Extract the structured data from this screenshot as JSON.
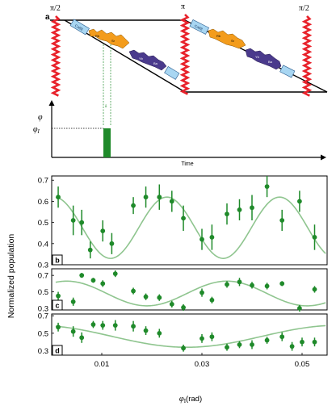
{
  "top": {
    "panel_label": "a",
    "pulse_labels": [
      "π/2",
      "π",
      "π/2"
    ],
    "phase_label": "φ",
    "phase_value_label": "φ",
    "phase_value_sub": "I",
    "delta_label": "δ",
    "time_label": "Time",
    "box_labels": [
      "Ca88",
      "Ca88"
    ],
    "molecule_labels": [
      "Rb",
      "Sr",
      "Yb",
      "Ba",
      "Rb",
      "Sr",
      "Yb",
      "Ba"
    ],
    "colors": {
      "pulse": "#e8222b",
      "orange": "#f39c1c",
      "purple": "#4a3a8c",
      "light_blue": "#a8d6f2",
      "green": "#1f8a2a"
    }
  },
  "shared_ylabel": "Normalized population",
  "shared_xlabel": "φ",
  "shared_xlabel_sub": "I",
  "shared_xlabel_unit": "(rad)",
  "chart_data": [
    {
      "type": "scatter",
      "panel": "b",
      "xlim": [
        0,
        0.055
      ],
      "ylim": [
        0.3,
        0.72
      ],
      "yticks": [
        "0.3",
        "0.4",
        "0.5",
        "0.6",
        "0.7"
      ],
      "ytick_values": [
        0.3,
        0.4,
        0.5,
        0.6,
        0.7
      ],
      "points": [
        {
          "x": 0.0013,
          "y": 0.62,
          "err": 0.05
        },
        {
          "x": 0.0043,
          "y": 0.51,
          "err": 0.07
        },
        {
          "x": 0.006,
          "y": 0.5,
          "err": 0.06
        },
        {
          "x": 0.0077,
          "y": 0.37,
          "err": 0.04
        },
        {
          "x": 0.0102,
          "y": 0.46,
          "err": 0.05
        },
        {
          "x": 0.012,
          "y": 0.4,
          "err": 0.05
        },
        {
          "x": 0.0163,
          "y": 0.58,
          "err": 0.04
        },
        {
          "x": 0.0188,
          "y": 0.62,
          "err": 0.05
        },
        {
          "x": 0.0215,
          "y": 0.62,
          "err": 0.06
        },
        {
          "x": 0.024,
          "y": 0.6,
          "err": 0.05
        },
        {
          "x": 0.0263,
          "y": 0.52,
          "err": 0.06
        },
        {
          "x": 0.03,
          "y": 0.42,
          "err": 0.05
        },
        {
          "x": 0.032,
          "y": 0.43,
          "err": 0.06
        },
        {
          "x": 0.035,
          "y": 0.54,
          "err": 0.05
        },
        {
          "x": 0.0375,
          "y": 0.56,
          "err": 0.05
        },
        {
          "x": 0.04,
          "y": 0.57,
          "err": 0.06
        },
        {
          "x": 0.043,
          "y": 0.67,
          "err": 0.05
        },
        {
          "x": 0.046,
          "y": 0.51,
          "err": 0.05
        },
        {
          "x": 0.0495,
          "y": 0.6,
          "err": 0.05
        },
        {
          "x": 0.0525,
          "y": 0.43,
          "err": 0.06
        }
      ],
      "fit": {
        "offset": 0.475,
        "amp": 0.145,
        "period": 0.0225,
        "x0": 0.0005
      }
    },
    {
      "type": "scatter",
      "panel": "c",
      "xlim": [
        0,
        0.055
      ],
      "ylim": [
        0.28,
        0.78
      ],
      "yticks": [
        "0.3",
        "0.5",
        "0.7"
      ],
      "ytick_values": [
        0.3,
        0.5,
        0.7
      ],
      "points": [
        {
          "x": 0.0013,
          "y": 0.45,
          "err": 0.05
        },
        {
          "x": 0.0043,
          "y": 0.38,
          "err": 0.05
        },
        {
          "x": 0.006,
          "y": 0.7,
          "err": 0.03
        },
        {
          "x": 0.0083,
          "y": 0.64,
          "err": 0.03
        },
        {
          "x": 0.0102,
          "y": 0.6,
          "err": 0.04
        },
        {
          "x": 0.0127,
          "y": 0.72,
          "err": 0.04
        },
        {
          "x": 0.0163,
          "y": 0.51,
          "err": 0.04
        },
        {
          "x": 0.0188,
          "y": 0.44,
          "err": 0.04
        },
        {
          "x": 0.0215,
          "y": 0.43,
          "err": 0.04
        },
        {
          "x": 0.024,
          "y": 0.35,
          "err": 0.04
        },
        {
          "x": 0.0263,
          "y": 0.31,
          "err": 0.04
        },
        {
          "x": 0.03,
          "y": 0.49,
          "err": 0.05
        },
        {
          "x": 0.032,
          "y": 0.4,
          "err": 0.04
        },
        {
          "x": 0.035,
          "y": 0.59,
          "err": 0.04
        },
        {
          "x": 0.0375,
          "y": 0.62,
          "err": 0.05
        },
        {
          "x": 0.04,
          "y": 0.58,
          "err": 0.04
        },
        {
          "x": 0.043,
          "y": 0.57,
          "err": 0.04
        },
        {
          "x": 0.046,
          "y": 0.6,
          "err": 0.03
        },
        {
          "x": 0.0495,
          "y": 0.3,
          "err": 0.04
        },
        {
          "x": 0.0525,
          "y": 0.53,
          "err": 0.04
        }
      ],
      "fit": {
        "offset": 0.48,
        "amp": 0.15,
        "period": 0.032,
        "x0": 0.003
      }
    },
    {
      "type": "scatter",
      "panel": "d",
      "xlim": [
        0,
        0.055
      ],
      "ylim": [
        0.25,
        0.72
      ],
      "yticks": [
        "0.3",
        "0.5",
        "0.7"
      ],
      "ytick_values": [
        0.3,
        0.5,
        0.7
      ],
      "xticks": [
        "0.01",
        "0.03",
        "0.05"
      ],
      "xtick_values": [
        0.01,
        0.03,
        0.05
      ],
      "points": [
        {
          "x": 0.0013,
          "y": 0.57,
          "err": 0.05
        },
        {
          "x": 0.0043,
          "y": 0.52,
          "err": 0.06
        },
        {
          "x": 0.006,
          "y": 0.45,
          "err": 0.06
        },
        {
          "x": 0.0083,
          "y": 0.6,
          "err": 0.04
        },
        {
          "x": 0.0102,
          "y": 0.59,
          "err": 0.05
        },
        {
          "x": 0.0127,
          "y": 0.59,
          "err": 0.06
        },
        {
          "x": 0.0163,
          "y": 0.58,
          "err": 0.06
        },
        {
          "x": 0.0188,
          "y": 0.53,
          "err": 0.05
        },
        {
          "x": 0.0215,
          "y": 0.5,
          "err": 0.05
        },
        {
          "x": 0.0263,
          "y": 0.33,
          "err": 0.04
        },
        {
          "x": 0.03,
          "y": 0.44,
          "err": 0.05
        },
        {
          "x": 0.032,
          "y": 0.46,
          "err": 0.05
        },
        {
          "x": 0.035,
          "y": 0.34,
          "err": 0.04
        },
        {
          "x": 0.0375,
          "y": 0.37,
          "err": 0.04
        },
        {
          "x": 0.04,
          "y": 0.37,
          "err": 0.05
        },
        {
          "x": 0.043,
          "y": 0.42,
          "err": 0.04
        },
        {
          "x": 0.046,
          "y": 0.46,
          "err": 0.05
        },
        {
          "x": 0.048,
          "y": 0.35,
          "err": 0.05
        },
        {
          "x": 0.05,
          "y": 0.4,
          "err": 0.05
        },
        {
          "x": 0.0525,
          "y": 0.4,
          "err": 0.05
        }
      ],
      "fit": {
        "offset": 0.465,
        "amp": 0.125,
        "period": 0.06,
        "x0": -0.003
      }
    }
  ]
}
